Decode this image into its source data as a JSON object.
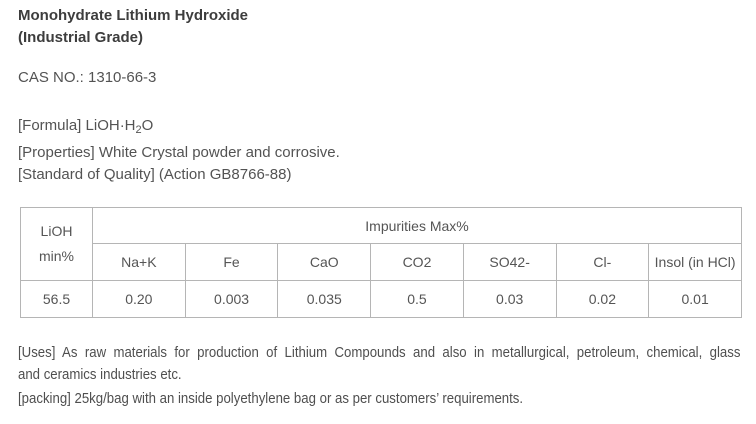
{
  "page": {
    "background": "#ffffff",
    "text_color": "#4f4f4f",
    "title_color": "#3d3d3d",
    "table_border_color": "#b5b5b5"
  },
  "header": {
    "title_line1": "Monohydrate Lithium Hydroxide",
    "title_line2": "(Industrial Grade)",
    "cas_line": "CAS NO.: 1310-66-3"
  },
  "details": {
    "formula_prefix": "[Formula] LiOH·H",
    "formula_subscript": "2",
    "formula_suffix": "O",
    "properties_line": "[Properties] White Crystal powder and corrosive.",
    "standard_line": "[Standard of Quality] (Action GB8766-88)"
  },
  "table": {
    "row_header": "LiOH\nmin%",
    "group_header": "Impurities Max%",
    "columns": [
      "Na+K",
      "Fe",
      "CaO",
      "CO2",
      "SO42-",
      "Cl-",
      "Insol (in HCl)"
    ],
    "lioh_min_value": "56.5",
    "values": [
      "0.20",
      "0.003",
      "0.035",
      "0.5",
      "0.03",
      "0.02",
      "0.01"
    ]
  },
  "footer": {
    "uses_line1": "[Uses] As raw materials for production of Lithium Compounds and also in metallurgical, petroleum, chemical, glass",
    "uses_line2": "and ceramics industries etc.",
    "packing_line": "[packing] 25kg/bag with an inside polyethylene bag or as per customers’ requirements."
  }
}
